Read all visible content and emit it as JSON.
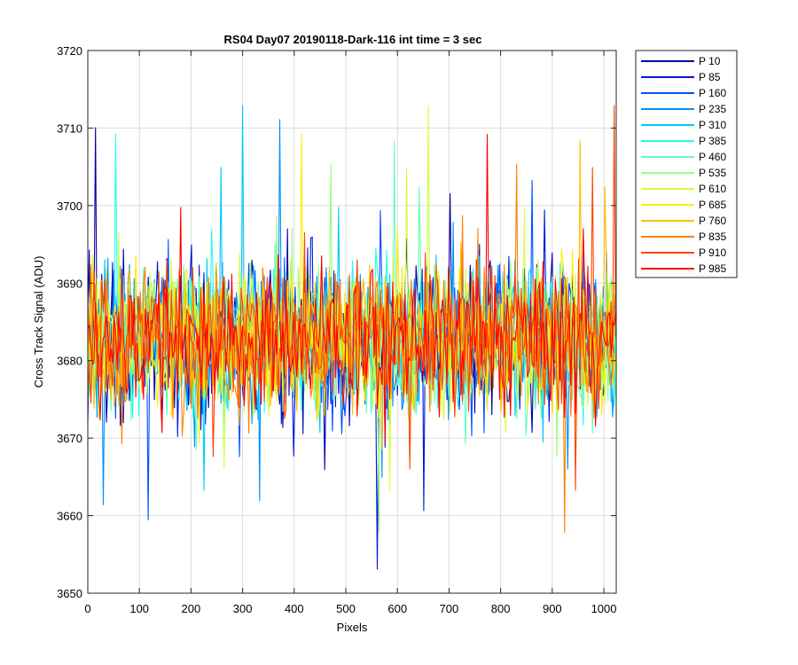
{
  "chart_data": {
    "type": "line",
    "title": "RS04 Day07 20190118-Dark-116 int time = 3 sec",
    "xlabel": "Pixels",
    "ylabel": "Cross Track Signal (ADU)",
    "xlim": [
      0,
      1024
    ],
    "ylim": [
      3650,
      3720
    ],
    "xticks": [
      0,
      100,
      200,
      300,
      400,
      500,
      600,
      700,
      800,
      900,
      1000
    ],
    "yticks": [
      3650,
      3660,
      3670,
      3680,
      3690,
      3700,
      3710,
      3720
    ],
    "grid": true,
    "legend_position": "outside-top-right",
    "mean_level": 3683,
    "series": [
      {
        "name": "P 10",
        "color": "#0000a8"
      },
      {
        "name": "P 85",
        "color": "#0018d8"
      },
      {
        "name": "P 160",
        "color": "#0050ff"
      },
      {
        "name": "P 235",
        "color": "#0090ff"
      },
      {
        "name": "P 310",
        "color": "#00c8ff"
      },
      {
        "name": "P 385",
        "color": "#20ffee"
      },
      {
        "name": "P 460",
        "color": "#60ffb8"
      },
      {
        "name": "P 535",
        "color": "#98ff80"
      },
      {
        "name": "P 610",
        "color": "#d0ff40"
      },
      {
        "name": "P 685",
        "color": "#ffec00"
      },
      {
        "name": "P 760",
        "color": "#ffbe00"
      },
      {
        "name": "P 835",
        "color": "#ff8000"
      },
      {
        "name": "P 910",
        "color": "#ff4400"
      },
      {
        "name": "P 985",
        "color": "#ff0000"
      }
    ]
  }
}
